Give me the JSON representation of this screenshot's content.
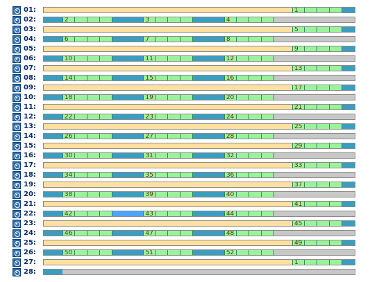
{
  "colors": {
    "free": "#ffe0a0",
    "used": "#3a9ec0",
    "cells": "#9cf29c",
    "highlight": "#4aa5ff",
    "empty": "#c8c8c8"
  },
  "rows": [
    {
      "label": "01:",
      "segments": [
        {
          "type": "free",
          "start": 0,
          "end": 0.799
        },
        {
          "type": "cells",
          "start": 0.799,
          "end": 0.96,
          "marker": "1"
        },
        {
          "type": "used",
          "start": 0.96,
          "end": 1
        }
      ]
    },
    {
      "label": "02:",
      "segments": [
        {
          "type": "used",
          "start": 0,
          "end": 0.06
        },
        {
          "type": "cells",
          "start": 0.06,
          "end": 0.22,
          "marker": "2"
        },
        {
          "type": "used",
          "start": 0.22,
          "end": 0.32
        },
        {
          "type": "cells",
          "start": 0.32,
          "end": 0.48,
          "marker": "3"
        },
        {
          "type": "used",
          "start": 0.48,
          "end": 0.58
        },
        {
          "type": "cells",
          "start": 0.58,
          "end": 0.74,
          "marker": "4"
        },
        {
          "type": "empty",
          "start": 0.74,
          "end": 1
        }
      ]
    },
    {
      "label": "03:",
      "segments": [
        {
          "type": "free",
          "start": 0,
          "end": 0.799
        },
        {
          "type": "cells",
          "start": 0.799,
          "end": 0.96,
          "marker": "5"
        },
        {
          "type": "used",
          "start": 0.96,
          "end": 1
        }
      ]
    },
    {
      "label": "04:",
      "segments": [
        {
          "type": "used",
          "start": 0,
          "end": 0.06
        },
        {
          "type": "cells",
          "start": 0.06,
          "end": 0.22,
          "marker": "6"
        },
        {
          "type": "used",
          "start": 0.22,
          "end": 0.32
        },
        {
          "type": "cells",
          "start": 0.32,
          "end": 0.48,
          "marker": "7"
        },
        {
          "type": "used",
          "start": 0.48,
          "end": 0.58
        },
        {
          "type": "cells",
          "start": 0.58,
          "end": 0.74,
          "marker": "8"
        },
        {
          "type": "empty",
          "start": 0.74,
          "end": 1
        }
      ]
    },
    {
      "label": "05:",
      "segments": [
        {
          "type": "free",
          "start": 0,
          "end": 0.799
        },
        {
          "type": "cells",
          "start": 0.799,
          "end": 0.96,
          "marker": "9"
        },
        {
          "type": "used",
          "start": 0.96,
          "end": 1
        }
      ]
    },
    {
      "label": "06:",
      "segments": [
        {
          "type": "used",
          "start": 0,
          "end": 0.06
        },
        {
          "type": "cells",
          "start": 0.06,
          "end": 0.22,
          "marker": "10"
        },
        {
          "type": "used",
          "start": 0.22,
          "end": 0.32
        },
        {
          "type": "cells",
          "start": 0.32,
          "end": 0.48,
          "marker": "11"
        },
        {
          "type": "used",
          "start": 0.48,
          "end": 0.58
        },
        {
          "type": "cells",
          "start": 0.58,
          "end": 0.74,
          "marker": "12"
        },
        {
          "type": "empty",
          "start": 0.74,
          "end": 1
        }
      ]
    },
    {
      "label": "07:",
      "segments": [
        {
          "type": "free",
          "start": 0,
          "end": 0.799
        },
        {
          "type": "cells",
          "start": 0.799,
          "end": 0.96,
          "marker": "13"
        },
        {
          "type": "used",
          "start": 0.96,
          "end": 1
        }
      ]
    },
    {
      "label": "08:",
      "segments": [
        {
          "type": "used",
          "start": 0,
          "end": 0.06
        },
        {
          "type": "cells",
          "start": 0.06,
          "end": 0.22,
          "marker": "14"
        },
        {
          "type": "used",
          "start": 0.22,
          "end": 0.32
        },
        {
          "type": "cells",
          "start": 0.32,
          "end": 0.48,
          "marker": "15"
        },
        {
          "type": "used",
          "start": 0.48,
          "end": 0.58
        },
        {
          "type": "cells",
          "start": 0.58,
          "end": 0.74,
          "marker": "16"
        },
        {
          "type": "empty",
          "start": 0.74,
          "end": 1
        }
      ]
    },
    {
      "label": "09:",
      "segments": [
        {
          "type": "free",
          "start": 0,
          "end": 0.799
        },
        {
          "type": "cells",
          "start": 0.799,
          "end": 0.96,
          "marker": "17"
        },
        {
          "type": "used",
          "start": 0.96,
          "end": 1
        }
      ]
    },
    {
      "label": "10:",
      "segments": [
        {
          "type": "used",
          "start": 0,
          "end": 0.06
        },
        {
          "type": "cells",
          "start": 0.06,
          "end": 0.22,
          "marker": "18"
        },
        {
          "type": "used",
          "start": 0.22,
          "end": 0.32
        },
        {
          "type": "cells",
          "start": 0.32,
          "end": 0.48,
          "marker": "19"
        },
        {
          "type": "used",
          "start": 0.48,
          "end": 0.58
        },
        {
          "type": "cells",
          "start": 0.58,
          "end": 0.74,
          "marker": "20"
        },
        {
          "type": "empty",
          "start": 0.74,
          "end": 1
        }
      ]
    },
    {
      "label": "11:",
      "segments": [
        {
          "type": "free",
          "start": 0,
          "end": 0.799
        },
        {
          "type": "cells",
          "start": 0.799,
          "end": 0.96,
          "marker": "21"
        },
        {
          "type": "used",
          "start": 0.96,
          "end": 1
        }
      ]
    },
    {
      "label": "12:",
      "segments": [
        {
          "type": "used",
          "start": 0,
          "end": 0.06
        },
        {
          "type": "cells",
          "start": 0.06,
          "end": 0.22,
          "marker": "22"
        },
        {
          "type": "used",
          "start": 0.22,
          "end": 0.32
        },
        {
          "type": "cells",
          "start": 0.32,
          "end": 0.48,
          "marker": "23"
        },
        {
          "type": "used",
          "start": 0.48,
          "end": 0.58
        },
        {
          "type": "cells",
          "start": 0.58,
          "end": 0.74,
          "marker": "24"
        },
        {
          "type": "empty",
          "start": 0.74,
          "end": 1
        }
      ]
    },
    {
      "label": "13:",
      "segments": [
        {
          "type": "free",
          "start": 0,
          "end": 0.799
        },
        {
          "type": "cells",
          "start": 0.799,
          "end": 0.96,
          "marker": "25"
        },
        {
          "type": "used",
          "start": 0.96,
          "end": 1
        }
      ]
    },
    {
      "label": "14:",
      "segments": [
        {
          "type": "used",
          "start": 0,
          "end": 0.06
        },
        {
          "type": "cells",
          "start": 0.06,
          "end": 0.22,
          "marker": "26"
        },
        {
          "type": "used",
          "start": 0.22,
          "end": 0.32
        },
        {
          "type": "cells",
          "start": 0.32,
          "end": 0.48,
          "marker": "27"
        },
        {
          "type": "used",
          "start": 0.48,
          "end": 0.58
        },
        {
          "type": "cells",
          "start": 0.58,
          "end": 0.74,
          "marker": "28"
        },
        {
          "type": "empty",
          "start": 0.74,
          "end": 1
        }
      ]
    },
    {
      "label": "15:",
      "segments": [
        {
          "type": "free",
          "start": 0,
          "end": 0.799
        },
        {
          "type": "cells",
          "start": 0.799,
          "end": 0.96,
          "marker": "29"
        },
        {
          "type": "used",
          "start": 0.96,
          "end": 1
        }
      ]
    },
    {
      "label": "16:",
      "segments": [
        {
          "type": "used",
          "start": 0,
          "end": 0.06
        },
        {
          "type": "cells",
          "start": 0.06,
          "end": 0.22,
          "marker": "30"
        },
        {
          "type": "used",
          "start": 0.22,
          "end": 0.32
        },
        {
          "type": "cells",
          "start": 0.32,
          "end": 0.48,
          "marker": "31"
        },
        {
          "type": "used",
          "start": 0.48,
          "end": 0.58
        },
        {
          "type": "cells",
          "start": 0.58,
          "end": 0.74,
          "marker": "32"
        },
        {
          "type": "empty",
          "start": 0.74,
          "end": 1
        }
      ]
    },
    {
      "label": "17:",
      "segments": [
        {
          "type": "free",
          "start": 0,
          "end": 0.799
        },
        {
          "type": "cells",
          "start": 0.799,
          "end": 0.96,
          "marker": "33"
        },
        {
          "type": "used",
          "start": 0.96,
          "end": 1
        }
      ]
    },
    {
      "label": "18:",
      "segments": [
        {
          "type": "used",
          "start": 0,
          "end": 0.06
        },
        {
          "type": "cells",
          "start": 0.06,
          "end": 0.22,
          "marker": "34"
        },
        {
          "type": "used",
          "start": 0.22,
          "end": 0.32
        },
        {
          "type": "cells",
          "start": 0.32,
          "end": 0.48,
          "marker": "35"
        },
        {
          "type": "used",
          "start": 0.48,
          "end": 0.58
        },
        {
          "type": "cells",
          "start": 0.58,
          "end": 0.74,
          "marker": "36"
        },
        {
          "type": "empty",
          "start": 0.74,
          "end": 1
        }
      ]
    },
    {
      "label": "19:",
      "segments": [
        {
          "type": "free",
          "start": 0,
          "end": 0.799
        },
        {
          "type": "cells",
          "start": 0.799,
          "end": 0.96,
          "marker": "37"
        },
        {
          "type": "used",
          "start": 0.96,
          "end": 1
        }
      ]
    },
    {
      "label": "20:",
      "segments": [
        {
          "type": "used",
          "start": 0,
          "end": 0.06
        },
        {
          "type": "cells",
          "start": 0.06,
          "end": 0.22,
          "marker": "38"
        },
        {
          "type": "used",
          "start": 0.22,
          "end": 0.32
        },
        {
          "type": "cells",
          "start": 0.32,
          "end": 0.48,
          "marker": "39"
        },
        {
          "type": "used",
          "start": 0.48,
          "end": 0.58
        },
        {
          "type": "cells",
          "start": 0.58,
          "end": 0.74,
          "marker": "40"
        },
        {
          "type": "empty",
          "start": 0.74,
          "end": 1
        }
      ]
    },
    {
      "label": "21:",
      "segments": [
        {
          "type": "free",
          "start": 0,
          "end": 0.799
        },
        {
          "type": "cells",
          "start": 0.799,
          "end": 0.96,
          "marker": "41"
        },
        {
          "type": "used",
          "start": 0.96,
          "end": 1
        }
      ]
    },
    {
      "label": "22:",
      "segments": [
        {
          "type": "used",
          "start": 0,
          "end": 0.06
        },
        {
          "type": "cells",
          "start": 0.06,
          "end": 0.22,
          "marker": "42"
        },
        {
          "type": "highlight",
          "start": 0.22,
          "end": 0.32
        },
        {
          "type": "cells",
          "start": 0.32,
          "end": 0.48,
          "marker": "43"
        },
        {
          "type": "used",
          "start": 0.48,
          "end": 0.58
        },
        {
          "type": "cells",
          "start": 0.58,
          "end": 0.74,
          "marker": "44"
        },
        {
          "type": "empty",
          "start": 0.74,
          "end": 1
        }
      ]
    },
    {
      "label": "23:",
      "segments": [
        {
          "type": "free",
          "start": 0,
          "end": 0.799
        },
        {
          "type": "cells",
          "start": 0.799,
          "end": 0.96,
          "marker": "45"
        },
        {
          "type": "used",
          "start": 0.96,
          "end": 1
        }
      ]
    },
    {
      "label": "24:",
      "segments": [
        {
          "type": "used",
          "start": 0,
          "end": 0.06
        },
        {
          "type": "cells",
          "start": 0.06,
          "end": 0.22,
          "marker": "46"
        },
        {
          "type": "used",
          "start": 0.22,
          "end": 0.32
        },
        {
          "type": "cells",
          "start": 0.32,
          "end": 0.48,
          "marker": "47"
        },
        {
          "type": "used",
          "start": 0.48,
          "end": 0.58
        },
        {
          "type": "cells",
          "start": 0.58,
          "end": 0.74,
          "marker": "48"
        },
        {
          "type": "empty",
          "start": 0.74,
          "end": 1
        }
      ]
    },
    {
      "label": "25:",
      "segments": [
        {
          "type": "free",
          "start": 0,
          "end": 0.799
        },
        {
          "type": "cells",
          "start": 0.799,
          "end": 0.96,
          "marker": "49"
        },
        {
          "type": "used",
          "start": 0.96,
          "end": 1
        }
      ]
    },
    {
      "label": "26:",
      "segments": [
        {
          "type": "used",
          "start": 0,
          "end": 0.06
        },
        {
          "type": "cells",
          "start": 0.06,
          "end": 0.22,
          "marker": "50"
        },
        {
          "type": "used",
          "start": 0.22,
          "end": 0.32
        },
        {
          "type": "cells",
          "start": 0.32,
          "end": 0.48,
          "marker": "51"
        },
        {
          "type": "used",
          "start": 0.48,
          "end": 0.58
        },
        {
          "type": "cells",
          "start": 0.58,
          "end": 0.74,
          "marker": "52"
        },
        {
          "type": "empty",
          "start": 0.74,
          "end": 1
        }
      ]
    },
    {
      "label": "27:",
      "segments": [
        {
          "type": "free",
          "start": 0,
          "end": 0.799
        },
        {
          "type": "cells",
          "start": 0.799,
          "end": 0.96,
          "marker": "1"
        },
        {
          "type": "used",
          "start": 0.96,
          "end": 1
        }
      ]
    },
    {
      "label": "28:",
      "segments": [
        {
          "type": "used",
          "start": 0,
          "end": 0.06
        },
        {
          "type": "empty",
          "start": 0.06,
          "end": 1
        }
      ]
    }
  ]
}
